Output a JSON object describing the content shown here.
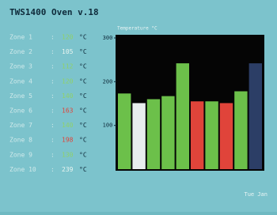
{
  "header": {
    "title": "TWS1400 Oven v.18"
  },
  "zones": [
    {
      "label": "Zone 1",
      "value": "120",
      "color": "#8fd16a"
    },
    {
      "label": "Zone 2",
      "value": "105",
      "color": "#e8f4f0"
    },
    {
      "label": "Zone 3",
      "value": "112",
      "color": "#8fd16a"
    },
    {
      "label": "Zone 4",
      "value": "120",
      "color": "#8fd16a"
    },
    {
      "label": "Zone 5",
      "value": "140",
      "color": "#8fd16a"
    },
    {
      "label": "Zone 6",
      "value": "163",
      "color": "#e0443a"
    },
    {
      "label": "Zone 7",
      "value": "140",
      "color": "#8fd16a"
    },
    {
      "label": "Zone 8",
      "value": "198",
      "color": "#e0443a"
    },
    {
      "label": "Zone 9",
      "value": "130",
      "color": "#8fd16a"
    },
    {
      "label": "Zone 10",
      "value": "239",
      "color": "#e8f4f0"
    }
  ],
  "unit": "°C",
  "chart_data": {
    "type": "bar",
    "subtitle": "Temperature °C",
    "categories": [
      null,
      null,
      null,
      null,
      null,
      null,
      null,
      null,
      null,
      null
    ],
    "values": [
      173,
      151,
      160,
      167,
      242,
      155,
      155,
      151,
      178,
      242
    ],
    "colors": [
      "#6cc04a",
      "#e8eeee",
      "#6cc04a",
      "#6cc04a",
      "#6cc04a",
      "#e0443a",
      "#6cc04a",
      "#e0443a",
      "#6cc04a",
      "#2c3e66"
    ],
    "ylim": [
      0,
      300
    ],
    "yticks": [
      100,
      200,
      300
    ]
  },
  "footer": "Tue Jan"
}
